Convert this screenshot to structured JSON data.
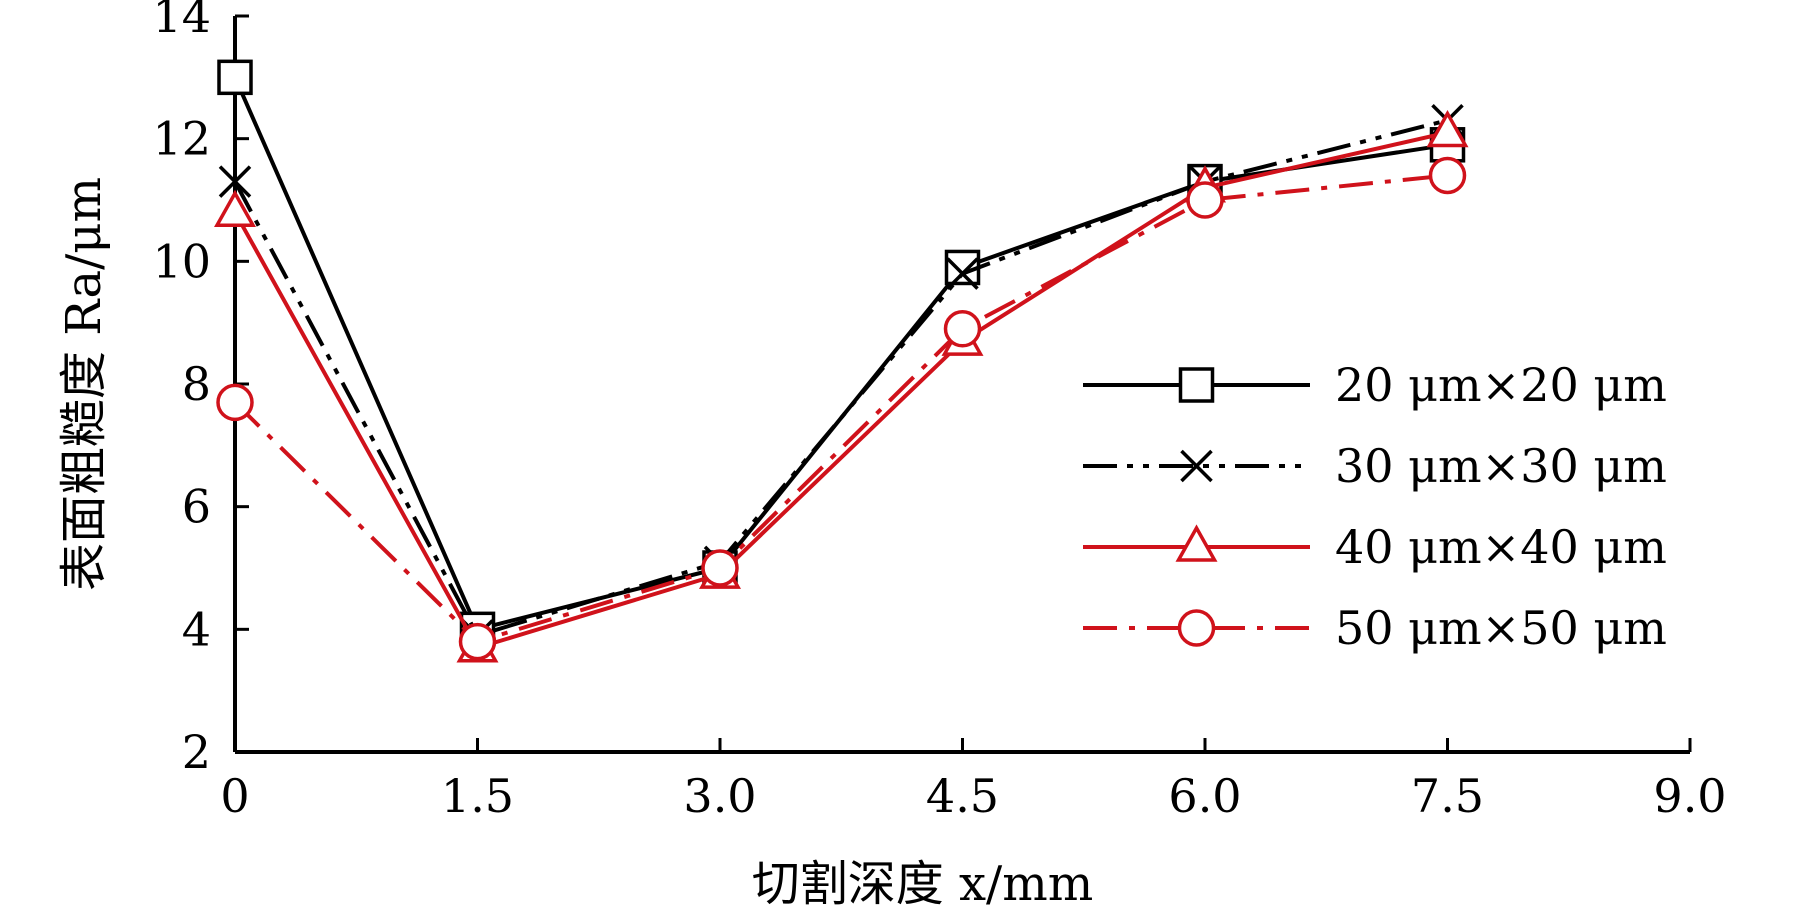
{
  "chart_data": {
    "type": "line",
    "xlabel": "切割深度 x/mm",
    "ylabel": "表面粗糙度 Ra/μm",
    "x": [
      0,
      1.5,
      3.0,
      4.5,
      6.0,
      7.5
    ],
    "xlim": [
      0,
      9.0
    ],
    "ylim": [
      2,
      14
    ],
    "x_ticks": [
      "0",
      "1.5",
      "3.0",
      "4.5",
      "6.0",
      "7.5",
      "9.0"
    ],
    "y_ticks": [
      "2",
      "4",
      "6",
      "8",
      "10",
      "12",
      "14"
    ],
    "grid": false,
    "legend_position": "right",
    "series": [
      {
        "name": "20 μm×20 μm",
        "values": [
          13.0,
          4.0,
          5.0,
          9.9,
          11.3,
          11.9
        ],
        "color": "#000000",
        "dash": "solid",
        "marker": "square"
      },
      {
        "name": "30 μm×30 μm",
        "values": [
          11.3,
          3.9,
          5.1,
          9.8,
          11.3,
          12.3
        ],
        "color": "#000000",
        "dash": "dash-dot-dot",
        "marker": "x"
      },
      {
        "name": "40 μm×40 μm",
        "values": [
          10.8,
          3.7,
          4.9,
          8.7,
          11.2,
          12.1
        ],
        "color": "#d0121b",
        "dash": "solid",
        "marker": "triangle"
      },
      {
        "name": "50 μm×50 μm",
        "values": [
          7.7,
          3.8,
          5.0,
          8.9,
          11.0,
          11.4
        ],
        "color": "#d0121b",
        "dash": "dash-dot",
        "marker": "circle"
      }
    ]
  }
}
